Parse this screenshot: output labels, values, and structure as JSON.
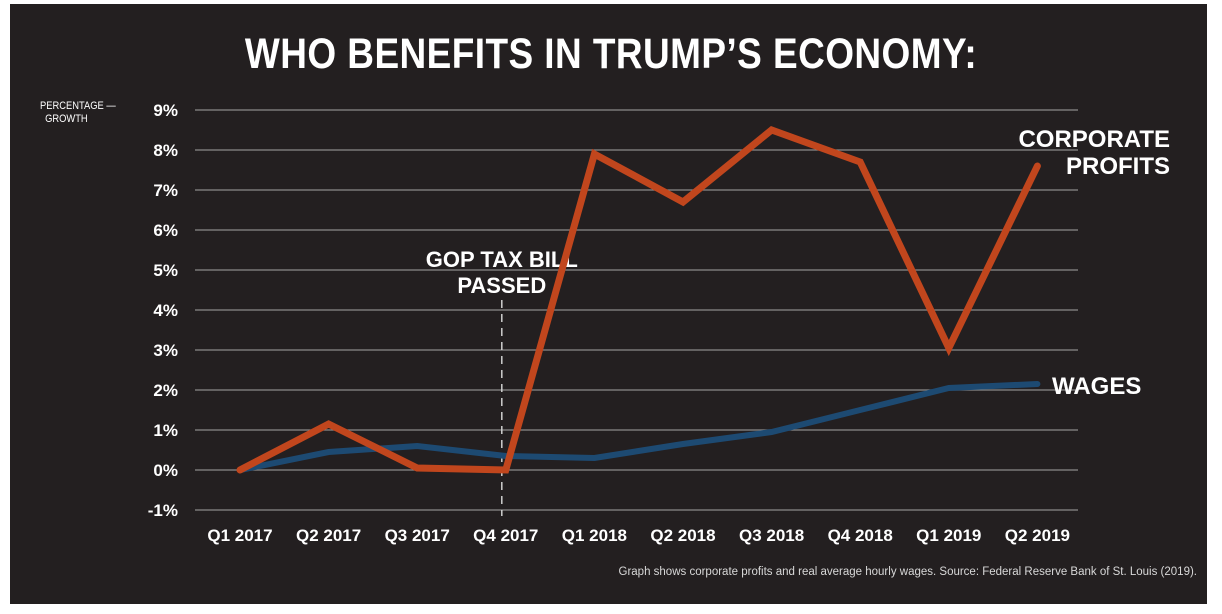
{
  "title": "WHO BENEFITS IN TRUMP’S ECONOMY:",
  "source_note": "Graph shows corporate profits and real average hourly wages. Source: Federal Reserve Bank of St. Louis (2019).",
  "colors": {
    "background": "#231f20",
    "profits": "#c1461d",
    "wages": "#1d4a72",
    "grid": "#8a8a8a",
    "text": "#ffffff"
  },
  "chart_data": {
    "type": "line",
    "title": "WHO BENEFITS IN TRUMP’S ECONOMY:",
    "ylabel": "PERCENTAGE — GROWTH",
    "ylabel_lines": [
      "PERCENTAGE —",
      "GROWTH"
    ],
    "xlabel": "",
    "ylim": [
      -1,
      9
    ],
    "yticks": [
      -1,
      0,
      1,
      2,
      3,
      4,
      5,
      6,
      7,
      8,
      9
    ],
    "ytick_labels": [
      "-1%",
      "0%",
      "1%",
      "2%",
      "3%",
      "4%",
      "5%",
      "6%",
      "7%",
      "8%",
      "9%"
    ],
    "grid": true,
    "categories": [
      "Q1 2017",
      "Q2 2017",
      "Q3 2017",
      "Q4 2017",
      "Q1 2018",
      "Q2 2018",
      "Q3 2018",
      "Q4 2018",
      "Q1 2019",
      "Q2 2019"
    ],
    "series": [
      {
        "name": "CORPORATE PROFITS",
        "label_lines": [
          "CORPORATE",
          "PROFITS"
        ],
        "color": "#c1461d",
        "values": [
          0.0,
          1.15,
          0.05,
          0.0,
          7.9,
          6.7,
          8.5,
          7.7,
          3.05,
          7.6
        ]
      },
      {
        "name": "WAGES",
        "label_lines": [
          "WAGES"
        ],
        "color": "#1d4a72",
        "values": [
          0.0,
          0.45,
          0.6,
          0.35,
          0.3,
          0.65,
          0.95,
          1.5,
          2.05,
          2.15
        ]
      }
    ],
    "annotations": [
      {
        "text_lines": [
          "GOP TAX BILL",
          "PASSED"
        ],
        "at_category": "Q4 2017"
      }
    ]
  }
}
